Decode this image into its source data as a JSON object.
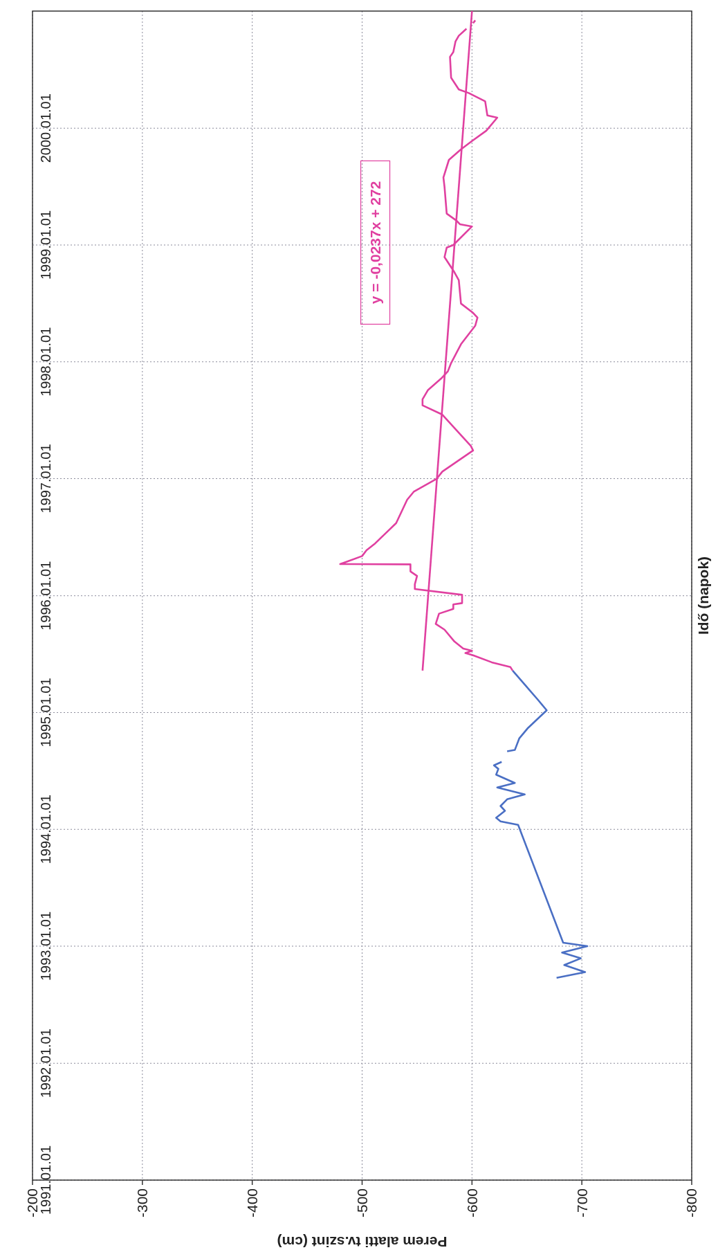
{
  "chart_data": {
    "type": "line",
    "xlabel": "Perem alatti tv.szint (cm)",
    "ylabel": "Idő (napok)",
    "annotations": [
      "y = -0,0237x + 272"
    ],
    "orientation": "horizontal",
    "ylim": [
      "1991-01-01",
      "2001-01-01"
    ],
    "yticks": [
      {
        "value": "1991-01-01",
        "label": "1991.01.01"
      },
      {
        "value": "1992-01-01",
        "label": "1992.01.01"
      },
      {
        "value": "1993-01-01",
        "label": "1993.01.01"
      },
      {
        "value": "1994-01-01",
        "label": "1994.01.01"
      },
      {
        "value": "1995-01-01",
        "label": "1995.01.01"
      },
      {
        "value": "1996-01-01",
        "label": "1996.01.01"
      },
      {
        "value": "1997-01-01",
        "label": "1997.01.01"
      },
      {
        "value": "1998-01-01",
        "label": "1998.01.01"
      },
      {
        "value": "1999-01-01",
        "label": "1999.01.01"
      },
      {
        "value": "2000-01-01",
        "label": "2000.01.01"
      }
    ],
    "xlim": [
      -200,
      -800
    ],
    "xticks": [
      -200,
      -300,
      -400,
      -500,
      -600,
      -700,
      -800
    ],
    "grid": true,
    "series": [
      {
        "color": "#4a6fc4",
        "x": [
          "1992-09-24",
          "1992-10-12",
          "1992-11-03",
          "1992-11-24",
          "1992-12-12",
          "1993-01-01",
          "1993-01-12",
          "1994-01-15",
          "1994-01-26",
          "1994-02-06",
          "1994-02-28",
          "1994-03-15",
          "1994-04-05",
          "1994-04-20",
          "1994-05-12",
          "1994-05-26",
          "1994-06-21",
          "1994-07-09",
          "1994-07-20",
          "1994-07-31",
          "1994-08-15",
          "1994-09-02",
          "1994-09-06",
          "1994-10-12",
          "1994-11-14",
          "1995-01-08",
          "1995-02-10",
          "1995-05-12"
        ],
        "values": [
          -677,
          -703,
          -684,
          -699,
          -682,
          -705,
          -683,
          -642,
          -626,
          -622,
          -630,
          -626,
          -632,
          -648,
          -623,
          -639,
          -622,
          -624,
          -620,
          -627,
          null,
          -632,
          -639,
          -643,
          -651,
          -668,
          -660,
          -637
        ]
      },
      {
        "color": "#e040a0",
        "x": [
          "1995-05-12",
          "1995-05-23",
          "1995-06-07",
          "1995-06-29",
          "1995-07-06",
          "1995-07-13",
          "1995-07-20",
          "1995-08-11",
          "1995-09-17",
          "1995-10-05",
          "1995-11-06",
          "1995-11-21",
          "1995-12-05",
          "1995-12-09",
          "1996-01-04",
          "1996-01-22",
          "1996-02-06",
          "1996-03-03",
          "1996-03-17",
          "1996-04-08",
          "1996-04-09",
          "1996-05-04",
          "1996-05-22",
          "1996-06-13",
          "1996-08-15",
          "1996-10-27",
          "1996-11-21",
          "1997-01-01",
          "1997-01-23",
          "1997-03-30",
          "1997-04-13",
          "1997-07-20",
          "1997-08-18",
          "1997-09-06",
          "1997-10-05",
          "1997-11-10",
          "1997-12-02",
          "1997-12-28",
          "1998-02-25",
          "1998-04-24",
          "1998-05-19",
          "1998-06-03",
          "1998-07-02",
          "1998-09-13",
          "1998-10-08",
          "1998-11-24",
          "1998-12-24",
          "1999-01-01",
          "1999-02-28",
          "1999-03-07",
          "1999-03-18",
          "1999-04-09",
          "1999-07-02",
          "1999-07-31",
          "1999-09-24",
          "1999-10-27",
          "1999-11-22",
          "1999-12-24",
          "2000-02-03",
          "2000-02-10",
          "2000-03-25",
          "2000-04-20",
          "2000-05-01",
          "2000-06-07",
          "2000-08-11",
          "2000-08-26",
          "2000-09-28",
          "2000-10-16",
          "2000-11-07",
          "2000-11-15",
          "2000-11-24",
          "2000-12-03"
        ],
        "values": [
          -637,
          -635,
          -618,
          -601,
          -594,
          -600,
          -592,
          -584,
          -575,
          -567,
          -570,
          -583,
          -583,
          -591,
          -591,
          -548,
          -548,
          -550,
          -544,
          -544,
          -480,
          -500,
          -504,
          -512,
          -531,
          -541,
          -547,
          -568,
          -573,
          -601,
          -599,
          -573,
          -555,
          -555,
          -560,
          -572,
          -578,
          -581,
          -590,
          -603,
          -605,
          -601,
          -590,
          -588,
          -584,
          -575,
          -577,
          -583,
          -600,
          -589,
          -586,
          -577,
          -575,
          -574,
          -579,
          -590,
          -600,
          -613,
          -623,
          -614,
          -612,
          -597,
          -588,
          -581,
          -580,
          -583,
          -585,
          -588,
          -595,
          null,
          -601,
          -603
        ]
      },
      {
        "type": "line",
        "color": "#e040a0",
        "x": [
          "1995-05-12",
          "2001-01-01"
        ],
        "values": [
          -555,
          -600
        ]
      }
    ]
  }
}
